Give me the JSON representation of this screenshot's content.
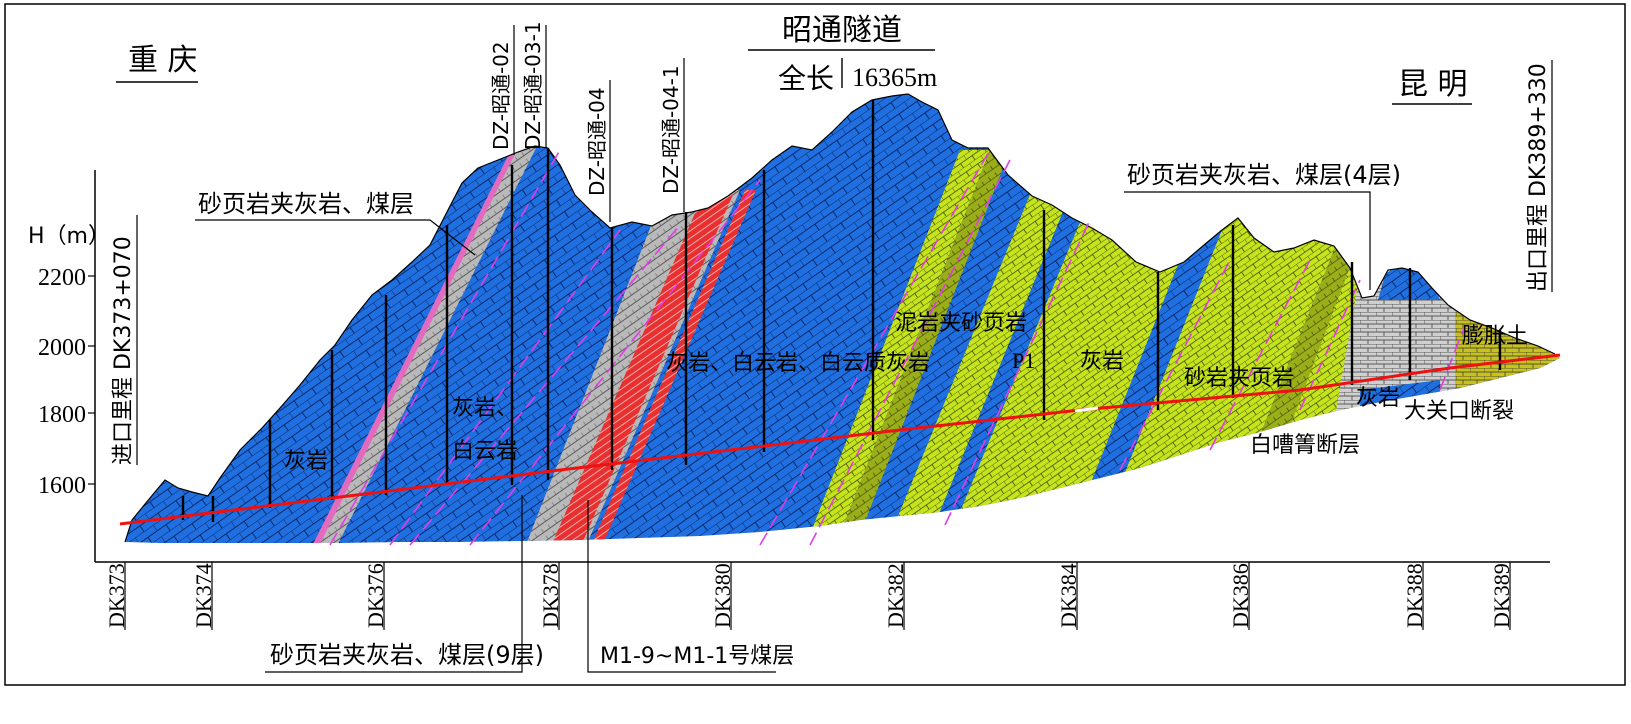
{
  "tunnel": {
    "title": "昭通隧道",
    "length_label": "全长",
    "length_value": "16365m"
  },
  "cities": {
    "left": "重 庆",
    "right": "昆 明"
  },
  "elevation_axis": {
    "label": "H（m）",
    "ticks": [
      "2200",
      "2000",
      "1800",
      "1600"
    ]
  },
  "mileage": {
    "entrance": "进口里程 DK373+070",
    "exit": "出口里程 DK389+330",
    "stations": [
      "DK373",
      "DK374",
      "DK376",
      "DK378",
      "DK380",
      "DK382",
      "DK384",
      "DK386",
      "DK388",
      "DK389"
    ]
  },
  "boreholes": [
    "DZ-昭通-02",
    "DZ-昭通-03-1",
    "DZ-昭通-04",
    "DZ-昭通-04-1"
  ],
  "geology_labels": {
    "callout_upper_left": "砂页岩夹灰岩、煤层",
    "callout_upper_right": "砂页岩夹灰岩、煤层(4层)",
    "callout_bottom_left": "砂页岩夹灰岩、煤层(9层)",
    "callout_bottom_mid": "M1-9~M1-1号煤层",
    "limestone": "灰岩",
    "limestone_dolomite_1": "灰岩、",
    "limestone_dolomite_2": "白云岩",
    "mixed_rock": "灰岩、白云岩、白云质灰岩",
    "mudstone": "泥岩夹砂页岩",
    "limestone_short": "灰岩",
    "p1": "P1",
    "sandstone_shale": "砂岩夹页岩",
    "baizhao_fault": "白嘈箐断层",
    "limestone_east": "灰岩",
    "daguankou_fault": "大关口断裂",
    "expansive_soil": "膨胀土"
  },
  "colors": {
    "limestone_blue": "#1f6fe0",
    "sand_yellow": "#c6e41e",
    "coal_red": "#e83030",
    "shale_gray": "#b4b4b4",
    "fault_magenta": "#e23ce8",
    "tunnel_red": "#ee1111"
  }
}
